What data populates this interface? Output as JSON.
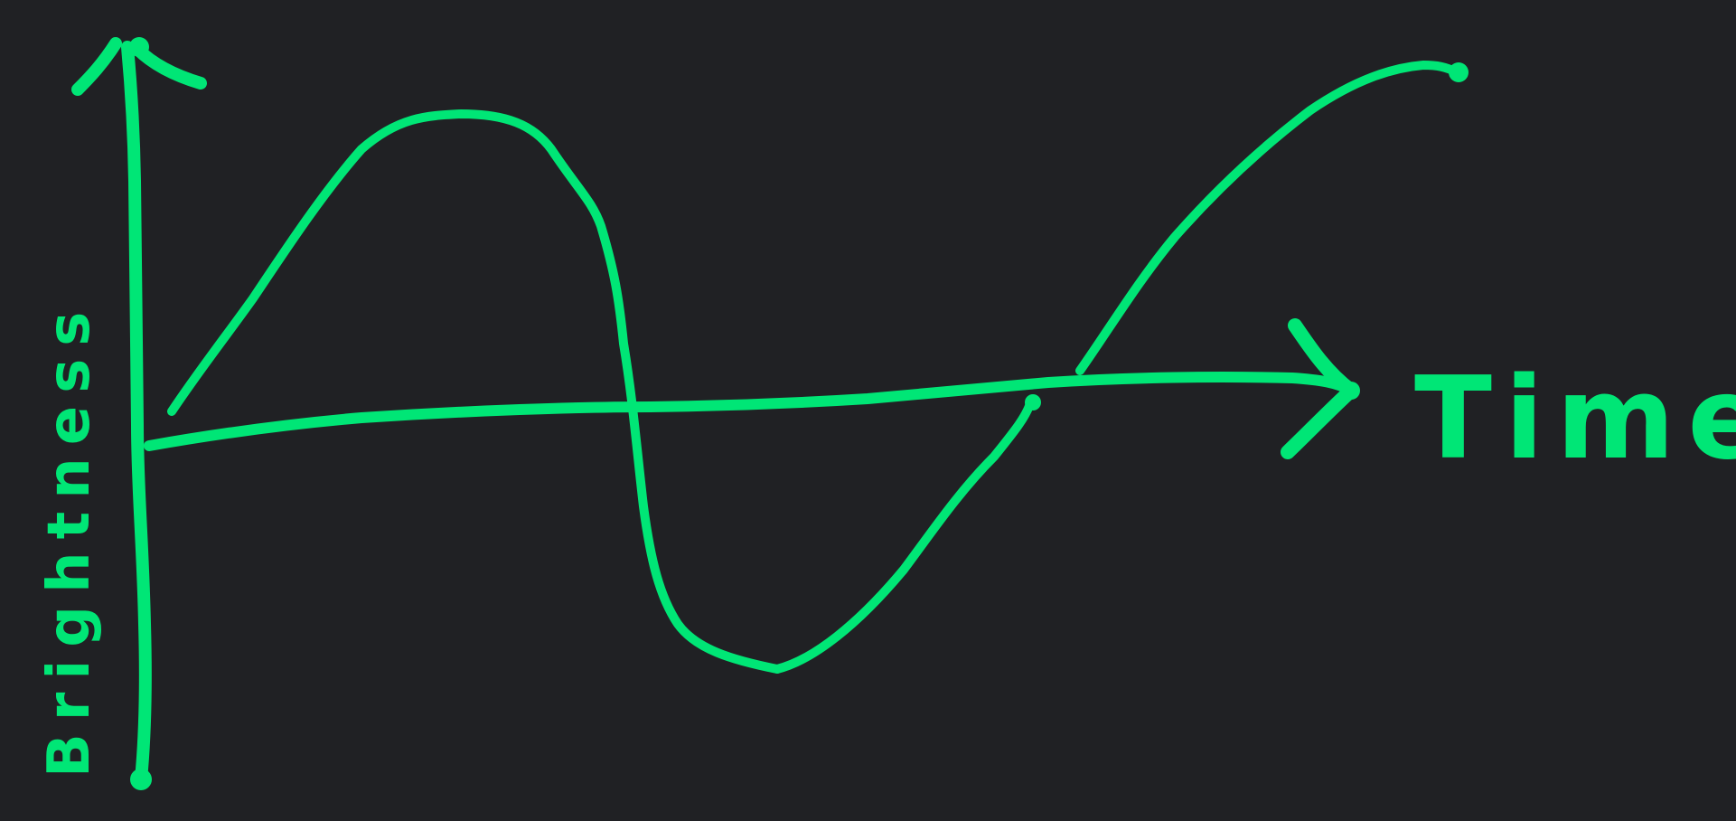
{
  "colors": {
    "background": "#202124",
    "ink": "#00E676"
  },
  "diagram": {
    "type": "hand-drawn-sketch",
    "y_axis_label": "Brightness",
    "x_axis_label": "Time",
    "curve_shape": "one full sine-like wave: rises, falls below the axis, rises again"
  }
}
